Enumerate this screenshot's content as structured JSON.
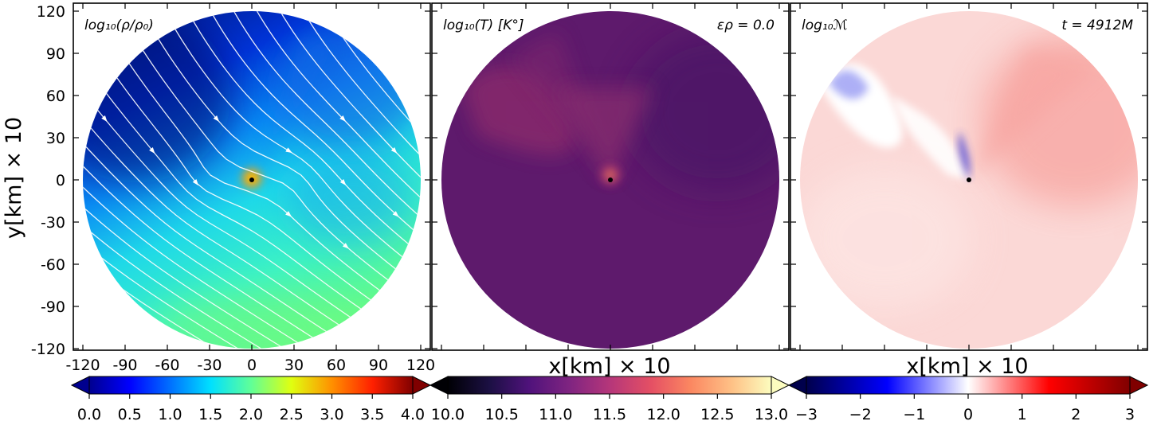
{
  "figure": {
    "ylabel": "y[km] × 10",
    "xlabels": [
      "x[km] × 10",
      "x[km] × 10"
    ]
  },
  "panels": [
    {
      "title": "log₁₀(ρ/ρ₀)",
      "annotation": "",
      "colorbar": {
        "colormap": "jet",
        "ticks": [
          "0.0",
          "0.5",
          "1.0",
          "1.5",
          "2.0",
          "2.5",
          "3.0",
          "3.5",
          "4.0"
        ],
        "range": [
          0.0,
          4.0
        ],
        "extend": "both"
      }
    },
    {
      "title": "log₁₀(T) [K°]",
      "annotation": "ερ = 0.0",
      "colorbar": {
        "colormap": "magma",
        "ticks": [
          "10.0",
          "10.5",
          "11.0",
          "11.5",
          "12.0",
          "12.5",
          "13.0"
        ],
        "range": [
          10.0,
          13.0
        ],
        "extend": "both"
      }
    },
    {
      "title": "log₁₀ℳ",
      "annotation": "t = 4912M",
      "colorbar": {
        "colormap": "seismic",
        "ticks": [
          "−3",
          "−2",
          "−1",
          "0",
          "1",
          "2",
          "3"
        ],
        "range": [
          -3,
          3
        ],
        "extend": "both"
      }
    }
  ],
  "chart_data": [
    {
      "type": "heatmap",
      "title": "log₁₀(ρ/ρ₀)",
      "quantity": "log10 density contrast",
      "xlim": [
        -120,
        120
      ],
      "ylim": [
        -120,
        120
      ],
      "xticks": [
        "-120",
        "-90",
        "-60",
        "-30",
        "0",
        "30",
        "60",
        "90",
        "120"
      ],
      "yticks": [
        "120",
        "90",
        "60",
        "30",
        "0",
        "-30",
        "-60",
        "-90",
        "-120"
      ],
      "color_range": [
        0.0,
        4.0
      ],
      "regions": [
        {
          "location": "upstream upper-left",
          "value": 0.2
        },
        {
          "location": "upper-right",
          "value": 0.6
        },
        {
          "location": "center-right",
          "value": 1.3
        },
        {
          "location": "lower-left",
          "value": 1.1
        },
        {
          "location": "bottom",
          "value": 2.0
        },
        {
          "location": "accretor (0,0)",
          "value": 3.2
        }
      ],
      "streamlines": true,
      "accretor": [
        0,
        0
      ]
    },
    {
      "type": "heatmap",
      "title": "log₁₀(T) [K°]",
      "quantity": "log10 temperature",
      "xlim": [
        -120,
        120
      ],
      "ylim": [
        -120,
        120
      ],
      "color_range": [
        10.0,
        13.0
      ],
      "regions": [
        {
          "location": "background",
          "value": 10.9
        },
        {
          "location": "upper-left shocked arc",
          "value": 11.3
        },
        {
          "location": "wake cone",
          "value": 11.3
        },
        {
          "location": "accretor (0,0)",
          "value": 12.2
        }
      ],
      "accretor": [
        0,
        0
      ]
    },
    {
      "type": "heatmap",
      "title": "log₁₀ℳ",
      "quantity": "log10 Mach number",
      "xlim": [
        -120,
        120
      ],
      "ylim": [
        -120,
        120
      ],
      "color_range": [
        -3,
        3
      ],
      "regions": [
        {
          "location": "background",
          "value": 0.35
        },
        {
          "location": "upper-right",
          "value": 0.55
        },
        {
          "location": "upper-left band",
          "value": -0.5
        },
        {
          "location": "wake near accretor",
          "value": -1.2
        }
      ],
      "accretor": [
        0,
        0
      ]
    }
  ]
}
